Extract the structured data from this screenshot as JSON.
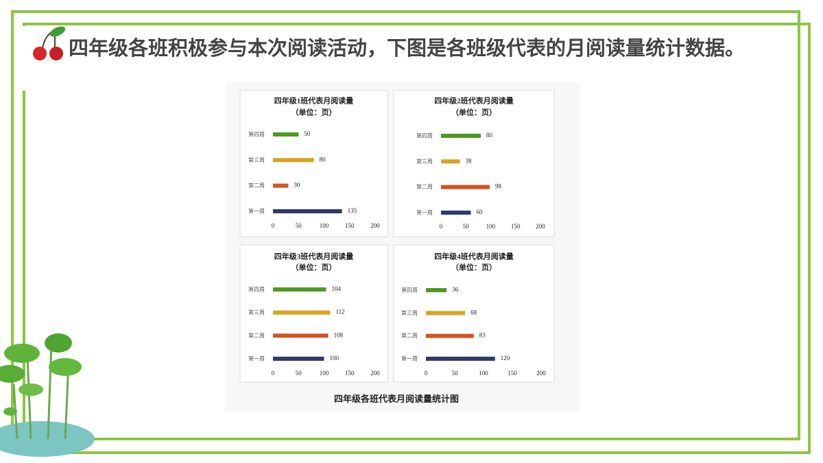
{
  "heading": "四年级各班积极参与本次阅读活动，下图是各班级代表的月阅读量统计数据。",
  "caption": "四年级各班代表月阅读量统计图",
  "chart_data": [
    {
      "type": "bar",
      "orientation": "horizontal",
      "title": "四年级1班代表月阅读量",
      "subtitle": "（单位：页）",
      "categories": [
        "第一周",
        "第二周",
        "第三周",
        "第四周"
      ],
      "values": [
        135,
        30,
        80,
        50
      ],
      "colors": [
        "#2f3a6b",
        "#d4531f",
        "#d9a422",
        "#4c9a1f"
      ],
      "xlim": [
        0,
        200
      ],
      "xticks": [
        0,
        50,
        100,
        150,
        200
      ]
    },
    {
      "type": "bar",
      "orientation": "horizontal",
      "title": "四年级2班代表月阅读量",
      "subtitle": "（单位：页）",
      "categories": [
        "第一周",
        "第二周",
        "第三周",
        "第四周"
      ],
      "values": [
        60,
        98,
        38,
        80
      ],
      "colors": [
        "#2f3a6b",
        "#d4531f",
        "#d9a422",
        "#4c9a1f"
      ],
      "xlim": [
        0,
        200
      ],
      "xticks": [
        0,
        50,
        100,
        150,
        200
      ]
    },
    {
      "type": "bar",
      "orientation": "horizontal",
      "title": "四年级3班代表月阅读量",
      "subtitle": "（单位：页）",
      "categories": [
        "第一周",
        "第二周",
        "第三周",
        "第四周"
      ],
      "values": [
        100,
        108,
        112,
        104
      ],
      "colors": [
        "#2f3a6b",
        "#d4531f",
        "#d9a422",
        "#4c9a1f"
      ],
      "xlim": [
        0,
        200
      ],
      "xticks": [
        0,
        50,
        100,
        150,
        200
      ]
    },
    {
      "type": "bar",
      "orientation": "horizontal",
      "title": "四年级4班代表月阅读量",
      "subtitle": "（单位：页）",
      "categories": [
        "第一周",
        "第二周",
        "第三周",
        "第四周"
      ],
      "values": [
        120,
        83,
        68,
        36
      ],
      "colors": [
        "#2f3a6b",
        "#d4531f",
        "#d9a422",
        "#4c9a1f"
      ],
      "xlim": [
        0,
        200
      ],
      "xticks": [
        0,
        50,
        100,
        150,
        200
      ]
    }
  ]
}
